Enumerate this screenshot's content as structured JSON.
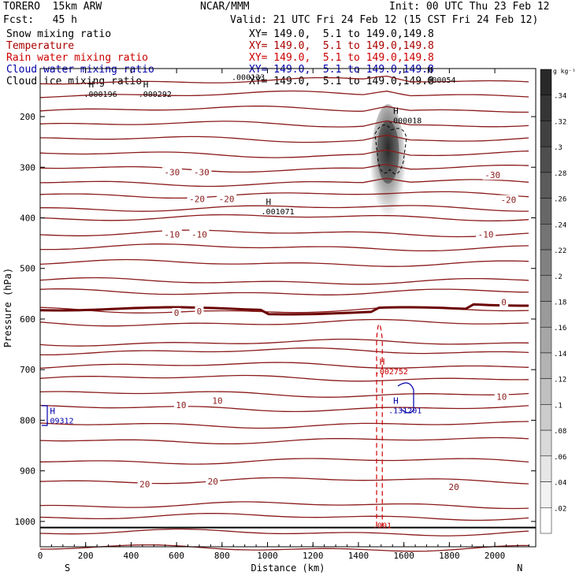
{
  "header": {
    "model": "TORERO  15km ARW",
    "org": "NCAR/MMM",
    "init": "Init: 00 UTC Thu 23 Feb 12",
    "fcst": "Fcst:   45 h",
    "valid": "Valid: 21 UTC Fri 24 Feb 12 (15 CST Fri 24 Feb 12)"
  },
  "fields": [
    {
      "name": "Snow mixing ratio",
      "xy": "XY= 149.0,  5.1 to 149.0,149.8",
      "color": "#000000"
    },
    {
      "name": "Temperature",
      "xy": "XY= 149.0,  5.1 to 149.0,149.8",
      "color": "#aa0000"
    },
    {
      "name": "Rain water mixing ratio",
      "xy": "XY= 149.0,  5.1 to 149.0,149.8",
      "color": "#cc0000"
    },
    {
      "name": "Cloud water mixing ratio",
      "xy": "XY= 149.0,  5.1 to 149.0,149.8",
      "color": "#0000aa"
    },
    {
      "name": "Cloud ice mixing ratio",
      "xy": "XY= 149.0,  5.1 to 149.0,149.8",
      "color": "#000000"
    }
  ],
  "chart_data": {
    "type": "cross-section",
    "xlabel": "Distance (km)",
    "ylabel": "Pressure (hPa)",
    "x_range": [
      0,
      2180
    ],
    "y_range_hpa": [
      1050,
      105
    ],
    "x_ticks": [
      0,
      200,
      400,
      600,
      800,
      1000,
      1200,
      1400,
      1600,
      1800,
      2000
    ],
    "y_ticks": [
      200,
      300,
      400,
      500,
      600,
      700,
      800,
      900,
      1000
    ],
    "end_labels": {
      "left": "S",
      "right": "N"
    },
    "temperature_isotherm_labels": [
      {
        "value": "-30",
        "x_km": 580,
        "p_hpa": 311
      },
      {
        "value": "-30",
        "x_km": 710,
        "p_hpa": 311
      },
      {
        "value": "-30",
        "x_km": 1990,
        "p_hpa": 317
      },
      {
        "value": "-20",
        "x_km": 690,
        "p_hpa": 364
      },
      {
        "value": "-20",
        "x_km": 820,
        "p_hpa": 364
      },
      {
        "value": "-20",
        "x_km": 2060,
        "p_hpa": 366
      },
      {
        "value": "-10",
        "x_km": 580,
        "p_hpa": 434
      },
      {
        "value": "-10",
        "x_km": 700,
        "p_hpa": 434
      },
      {
        "value": "-10",
        "x_km": 1960,
        "p_hpa": 434
      },
      {
        "value": "0",
        "x_km": 600,
        "p_hpa": 589
      },
      {
        "value": "0",
        "x_km": 700,
        "p_hpa": 586
      },
      {
        "value": "0",
        "x_km": 2040,
        "p_hpa": 568
      },
      {
        "value": "10",
        "x_km": 620,
        "p_hpa": 771
      },
      {
        "value": "10",
        "x_km": 780,
        "p_hpa": 763
      },
      {
        "value": "10",
        "x_km": 2030,
        "p_hpa": 755
      },
      {
        "value": "20",
        "x_km": 460,
        "p_hpa": 928
      },
      {
        "value": "20",
        "x_km": 760,
        "p_hpa": 922
      },
      {
        "value": "20",
        "x_km": 1820,
        "p_hpa": 933
      }
    ],
    "extrema": [
      {
        "mark": "H",
        "value": ".000196",
        "x_km": 220,
        "p_hpa": 155,
        "color": "#000000"
      },
      {
        "mark": "H",
        "value": ".000292",
        "x_km": 460,
        "p_hpa": 155,
        "color": "#000000"
      },
      {
        "mark": "",
        "value": ".000133",
        "x_km": 870,
        "p_hpa": 121,
        "color": "#000000"
      },
      {
        "mark": "H",
        "value": ".000054",
        "x_km": 1710,
        "p_hpa": 127,
        "color": "#000000"
      },
      {
        "mark": "H",
        "value": ".000018",
        "x_km": 1560,
        "p_hpa": 207,
        "color": "#000000"
      },
      {
        "mark": "H",
        "value": ".001071",
        "x_km": 1000,
        "p_hpa": 387,
        "color": "#000000"
      },
      {
        "mark": "H",
        "value": ".002752",
        "x_km": 1500,
        "p_hpa": 703,
        "color": "#cc0000"
      },
      {
        "mark": "H",
        "value": ".131201",
        "x_km": 1560,
        "p_hpa": 780,
        "color": "#0000aa"
      },
      {
        "mark": "H",
        "value": ".09312",
        "x_km": 50,
        "p_hpa": 800,
        "color": "#0000aa"
      },
      {
        "mark": "",
        "value": ".001",
        "x_km": 1490,
        "p_hpa": 1007,
        "color": "#cc0000"
      }
    ],
    "colorbar": {
      "unit": "g kg⁻¹",
      "tick_labels": [
        ".34",
        ".32",
        ".3",
        ".28",
        ".26",
        ".24",
        ".22",
        ".2",
        ".18",
        ".16",
        ".14",
        ".12",
        ".1",
        ".08",
        ".06",
        ".04",
        ".02"
      ]
    }
  }
}
